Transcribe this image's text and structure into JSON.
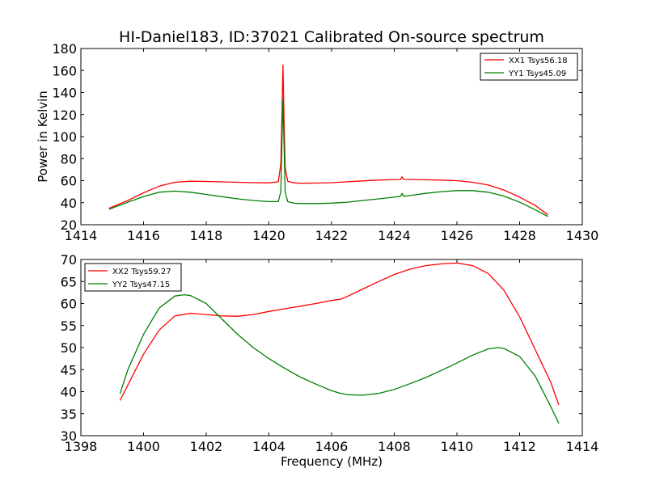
{
  "chart_data": [
    {
      "type": "line",
      "title": "HI-Daniel183, ID:37021 Calibrated On-source spectrum",
      "xlabel": "",
      "ylabel": "Power in Kelvin",
      "xlim": [
        1414,
        1430
      ],
      "ylim": [
        20,
        180
      ],
      "xticks": [
        "1414",
        "1416",
        "1418",
        "1420",
        "1422",
        "1424",
        "1426",
        "1428",
        "1430"
      ],
      "yticks": [
        "20",
        "40",
        "60",
        "80",
        "100",
        "120",
        "140",
        "160",
        "180"
      ],
      "legend_position": "top-right",
      "series": [
        {
          "name": "XX1 Tsys56.18",
          "color": "#ff0000",
          "x": [
            1414.9,
            1415.5,
            1416.0,
            1416.5,
            1417.0,
            1417.5,
            1418.0,
            1418.5,
            1419.0,
            1419.5,
            1420.0,
            1420.3,
            1420.38,
            1420.42,
            1420.45,
            1420.48,
            1420.52,
            1420.6,
            1420.8,
            1421.0,
            1421.5,
            1422.0,
            1422.5,
            1423.0,
            1423.5,
            1424.0,
            1424.2,
            1424.25,
            1424.3,
            1424.5,
            1425.0,
            1425.5,
            1426.0,
            1426.5,
            1427.0,
            1427.5,
            1428.0,
            1428.5,
            1428.9
          ],
          "y": [
            35,
            42,
            49,
            55,
            58.5,
            59.5,
            59.3,
            58.9,
            58.5,
            58.2,
            58.0,
            59,
            75,
            125,
            165,
            120,
            72,
            59.5,
            58,
            57.7,
            57.8,
            58.2,
            59,
            59.8,
            60.5,
            61,
            61.1,
            63.5,
            61.1,
            61,
            60.8,
            60.5,
            60,
            58.5,
            56,
            51.5,
            45,
            37.5,
            29
          ]
        },
        {
          "name": "YY1 Tsys45.09",
          "color": "#008000",
          "x": [
            1414.9,
            1415.5,
            1416.0,
            1416.5,
            1417.0,
            1417.5,
            1418.0,
            1418.5,
            1419.0,
            1419.5,
            1420.0,
            1420.3,
            1420.38,
            1420.42,
            1420.45,
            1420.48,
            1420.52,
            1420.6,
            1420.8,
            1421.0,
            1421.5,
            1422.0,
            1422.5,
            1423.0,
            1423.5,
            1424.0,
            1424.2,
            1424.25,
            1424.3,
            1424.5,
            1425.0,
            1425.5,
            1426.0,
            1426.5,
            1427.0,
            1427.5,
            1428.0,
            1428.5,
            1428.9
          ],
          "y": [
            34,
            40.5,
            45.5,
            49.5,
            50.5,
            49.5,
            47.5,
            45.5,
            43.5,
            42,
            41,
            41,
            50,
            100,
            134,
            95,
            50,
            41,
            39.5,
            39.2,
            39.2,
            39.6,
            40.5,
            42,
            43.5,
            45,
            45.8,
            48.5,
            45.8,
            46.5,
            48.5,
            50,
            51,
            51,
            49.5,
            46,
            40.5,
            33.5,
            27.5
          ]
        }
      ]
    },
    {
      "type": "line",
      "title": "",
      "xlabel": "Frequency (MHz)",
      "ylabel": "",
      "xlim": [
        1398,
        1414
      ],
      "ylim": [
        30,
        70
      ],
      "xticks": [
        "1398",
        "1400",
        "1402",
        "1404",
        "1406",
        "1408",
        "1410",
        "1412",
        "1414"
      ],
      "yticks": [
        "30",
        "35",
        "40",
        "45",
        "50",
        "55",
        "60",
        "65",
        "70"
      ],
      "legend_position": "top-left",
      "series": [
        {
          "name": "XX2 Tsys59.27",
          "color": "#ff0000",
          "x": [
            1399.25,
            1399.5,
            1400.0,
            1400.5,
            1401.0,
            1401.5,
            1402.0,
            1402.5,
            1403.0,
            1403.5,
            1404.0,
            1404.5,
            1405.0,
            1405.5,
            1406.0,
            1406.3,
            1406.5,
            1407.0,
            1407.5,
            1408.0,
            1408.5,
            1409.0,
            1409.5,
            1410.0,
            1410.5,
            1411.0,
            1411.5,
            1412.0,
            1412.5,
            1413.0,
            1413.25
          ],
          "y": [
            38,
            41.5,
            48.5,
            54,
            57.2,
            57.8,
            57.5,
            57.2,
            57.1,
            57.5,
            58.2,
            58.8,
            59.4,
            60.0,
            60.7,
            61.0,
            61.6,
            63.3,
            65.0,
            66.6,
            67.8,
            68.6,
            69.0,
            69.2,
            68.6,
            66.8,
            63,
            57,
            49.5,
            42,
            37
          ]
        },
        {
          "name": "YY2 Tsys47.15",
          "color": "#008000",
          "x": [
            1399.25,
            1399.5,
            1400.0,
            1400.5,
            1401.0,
            1401.3,
            1401.5,
            1402.0,
            1402.5,
            1403.0,
            1403.5,
            1404.0,
            1404.5,
            1405.0,
            1405.5,
            1406.0,
            1406.3,
            1406.5,
            1407.0,
            1407.5,
            1408.0,
            1408.5,
            1409.0,
            1409.5,
            1410.0,
            1410.5,
            1411.0,
            1411.3,
            1411.5,
            1412.0,
            1412.5,
            1413.0,
            1413.25
          ],
          "y": [
            39.5,
            45,
            53,
            59,
            61.7,
            62.0,
            61.8,
            60,
            56.5,
            53,
            50,
            47.5,
            45.3,
            43.3,
            41.7,
            40.2,
            39.6,
            39.3,
            39.2,
            39.6,
            40.5,
            41.8,
            43.2,
            44.8,
            46.5,
            48.3,
            49.7,
            50.0,
            49.8,
            48,
            43.5,
            36.5,
            32.8
          ]
        }
      ]
    }
  ]
}
